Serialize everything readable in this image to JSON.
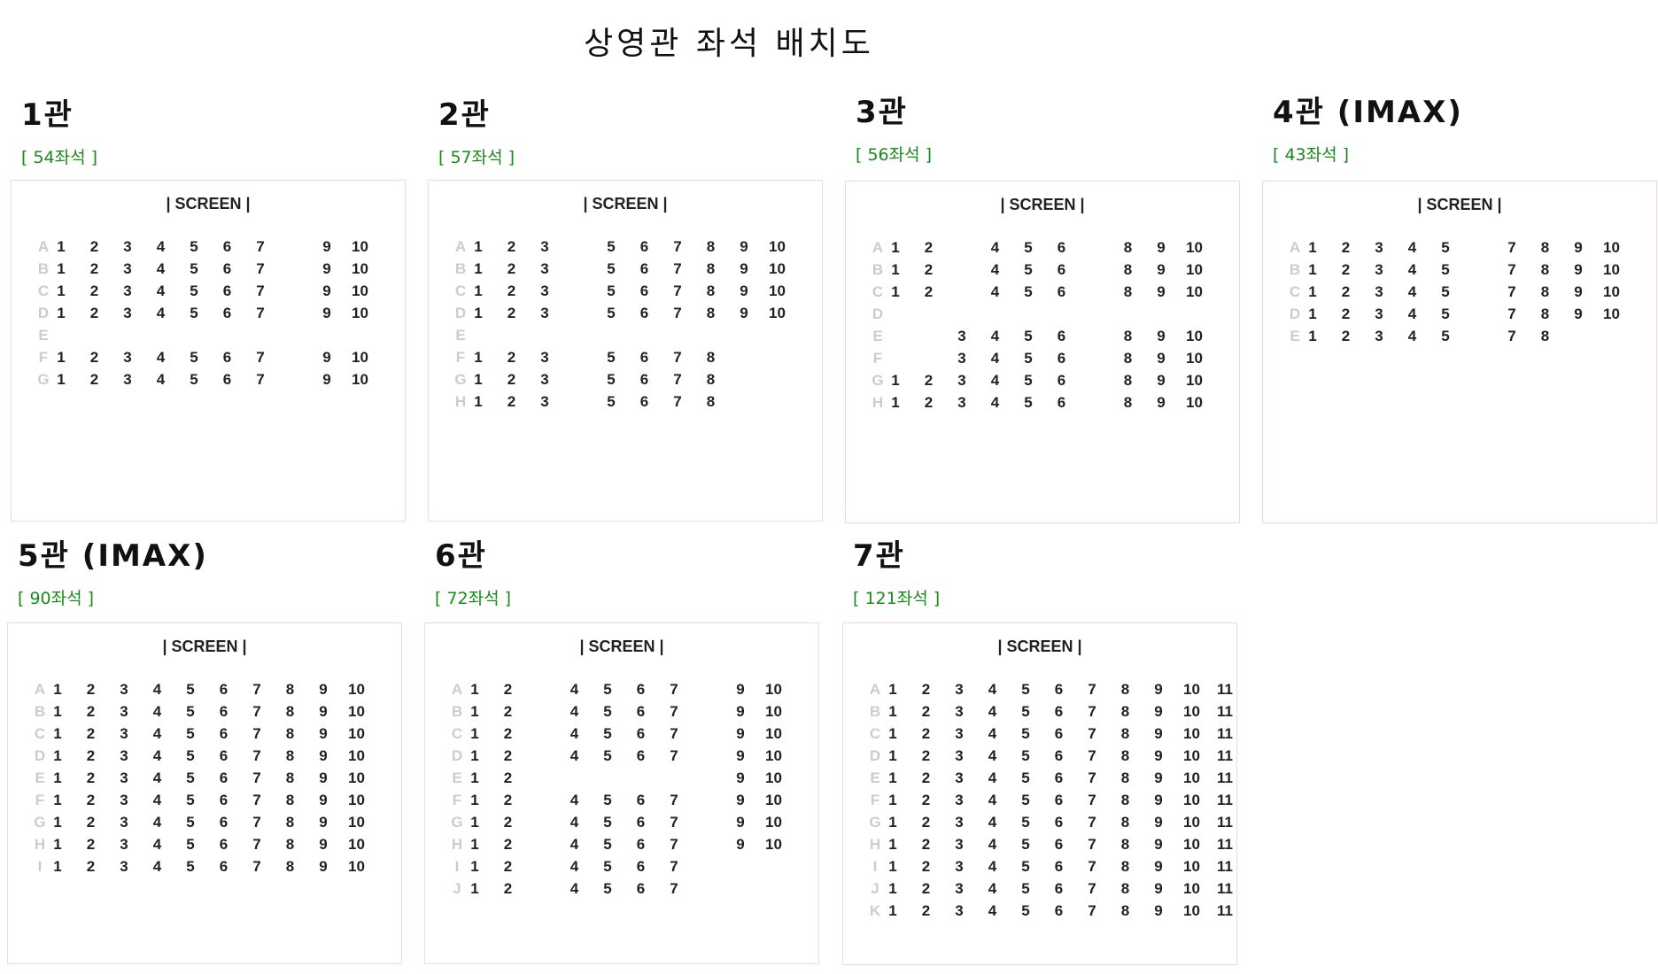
{
  "page_title": "상영관 좌석 배치도",
  "screen_label": "| SCREEN |",
  "halls": [
    {
      "name": "1관",
      "count": "[ 54좌석 ]",
      "cols": 10,
      "rows": [
        {
          "label": "A",
          "seats": [
            "1",
            "2",
            "3",
            "4",
            "5",
            "6",
            "7",
            null,
            "9",
            "10"
          ]
        },
        {
          "label": "B",
          "seats": [
            "1",
            "2",
            "3",
            "4",
            "5",
            "6",
            "7",
            null,
            "9",
            "10"
          ]
        },
        {
          "label": "C",
          "seats": [
            "1",
            "2",
            "3",
            "4",
            "5",
            "6",
            "7",
            null,
            "9",
            "10"
          ]
        },
        {
          "label": "D",
          "seats": [
            "1",
            "2",
            "3",
            "4",
            "5",
            "6",
            "7",
            null,
            "9",
            "10"
          ]
        },
        {
          "label": "E",
          "seats": [
            null,
            null,
            null,
            null,
            null,
            null,
            null,
            null,
            null,
            null
          ]
        },
        {
          "label": "F",
          "seats": [
            "1",
            "2",
            "3",
            "4",
            "5",
            "6",
            "7",
            null,
            "9",
            "10"
          ]
        },
        {
          "label": "G",
          "seats": [
            "1",
            "2",
            "3",
            "4",
            "5",
            "6",
            "7",
            null,
            "9",
            "10"
          ]
        }
      ]
    },
    {
      "name": "2관",
      "count": "[ 57좌석 ]",
      "cols": 10,
      "rows": [
        {
          "label": "A",
          "seats": [
            "1",
            "2",
            "3",
            null,
            "5",
            "6",
            "7",
            "8",
            "9",
            "10"
          ]
        },
        {
          "label": "B",
          "seats": [
            "1",
            "2",
            "3",
            null,
            "5",
            "6",
            "7",
            "8",
            "9",
            "10"
          ]
        },
        {
          "label": "C",
          "seats": [
            "1",
            "2",
            "3",
            null,
            "5",
            "6",
            "7",
            "8",
            "9",
            "10"
          ]
        },
        {
          "label": "D",
          "seats": [
            "1",
            "2",
            "3",
            null,
            "5",
            "6",
            "7",
            "8",
            "9",
            "10"
          ]
        },
        {
          "label": "E",
          "seats": [
            null,
            null,
            null,
            null,
            null,
            null,
            null,
            null,
            null,
            null
          ]
        },
        {
          "label": "F",
          "seats": [
            "1",
            "2",
            "3",
            null,
            "5",
            "6",
            "7",
            "8",
            null,
            null
          ]
        },
        {
          "label": "G",
          "seats": [
            "1",
            "2",
            "3",
            null,
            "5",
            "6",
            "7",
            "8",
            null,
            null
          ]
        },
        {
          "label": "H",
          "seats": [
            "1",
            "2",
            "3",
            null,
            "5",
            "6",
            "7",
            "8",
            null,
            null
          ]
        }
      ]
    },
    {
      "name": "3관",
      "count": "[ 56좌석 ]",
      "cols": 10,
      "rows": [
        {
          "label": "A",
          "seats": [
            "1",
            "2",
            null,
            "4",
            "5",
            "6",
            null,
            "8",
            "9",
            "10"
          ]
        },
        {
          "label": "B",
          "seats": [
            "1",
            "2",
            null,
            "4",
            "5",
            "6",
            null,
            "8",
            "9",
            "10"
          ]
        },
        {
          "label": "C",
          "seats": [
            "1",
            "2",
            null,
            "4",
            "5",
            "6",
            null,
            "8",
            "9",
            "10"
          ]
        },
        {
          "label": "D",
          "seats": [
            null,
            null,
            null,
            null,
            null,
            null,
            null,
            null,
            null,
            null
          ]
        },
        {
          "label": "E",
          "seats": [
            null,
            null,
            "3",
            "4",
            "5",
            "6",
            null,
            "8",
            "9",
            "10"
          ]
        },
        {
          "label": "F",
          "seats": [
            null,
            null,
            "3",
            "4",
            "5",
            "6",
            null,
            "8",
            "9",
            "10"
          ]
        },
        {
          "label": "G",
          "seats": [
            "1",
            "2",
            "3",
            "4",
            "5",
            "6",
            null,
            "8",
            "9",
            "10"
          ]
        },
        {
          "label": "H",
          "seats": [
            "1",
            "2",
            "3",
            "4",
            "5",
            "6",
            null,
            "8",
            "9",
            "10"
          ]
        }
      ]
    },
    {
      "name": "4관 (IMAX)",
      "count": "[ 43좌석 ]",
      "cols": 10,
      "rows": [
        {
          "label": "A",
          "seats": [
            "1",
            "2",
            "3",
            "4",
            "5",
            null,
            "7",
            "8",
            "9",
            "10"
          ]
        },
        {
          "label": "B",
          "seats": [
            "1",
            "2",
            "3",
            "4",
            "5",
            null,
            "7",
            "8",
            "9",
            "10"
          ]
        },
        {
          "label": "C",
          "seats": [
            "1",
            "2",
            "3",
            "4",
            "5",
            null,
            "7",
            "8",
            "9",
            "10"
          ]
        },
        {
          "label": "D",
          "seats": [
            "1",
            "2",
            "3",
            "4",
            "5",
            null,
            "7",
            "8",
            "9",
            "10"
          ]
        },
        {
          "label": "E",
          "seats": [
            "1",
            "2",
            "3",
            "4",
            "5",
            null,
            "7",
            "8",
            null,
            null
          ]
        }
      ]
    },
    {
      "name": "5관 (IMAX)",
      "count": "[ 90좌석 ]",
      "cols": 10,
      "rows": [
        {
          "label": "A",
          "seats": [
            "1",
            "2",
            "3",
            "4",
            "5",
            "6",
            "7",
            "8",
            "9",
            "10"
          ]
        },
        {
          "label": "B",
          "seats": [
            "1",
            "2",
            "3",
            "4",
            "5",
            "6",
            "7",
            "8",
            "9",
            "10"
          ]
        },
        {
          "label": "C",
          "seats": [
            "1",
            "2",
            "3",
            "4",
            "5",
            "6",
            "7",
            "8",
            "9",
            "10"
          ]
        },
        {
          "label": "D",
          "seats": [
            "1",
            "2",
            "3",
            "4",
            "5",
            "6",
            "7",
            "8",
            "9",
            "10"
          ]
        },
        {
          "label": "E",
          "seats": [
            "1",
            "2",
            "3",
            "4",
            "5",
            "6",
            "7",
            "8",
            "9",
            "10"
          ]
        },
        {
          "label": "F",
          "seats": [
            "1",
            "2",
            "3",
            "4",
            "5",
            "6",
            "7",
            "8",
            "9",
            "10"
          ]
        },
        {
          "label": "G",
          "seats": [
            "1",
            "2",
            "3",
            "4",
            "5",
            "6",
            "7",
            "8",
            "9",
            "10"
          ]
        },
        {
          "label": "H",
          "seats": [
            "1",
            "2",
            "3",
            "4",
            "5",
            "6",
            "7",
            "8",
            "9",
            "10"
          ]
        },
        {
          "label": "I",
          "seats": [
            "1",
            "2",
            "3",
            "4",
            "5",
            "6",
            "7",
            "8",
            "9",
            "10"
          ]
        }
      ]
    },
    {
      "name": "6관",
      "count": "[ 72좌석 ]",
      "cols": 10,
      "rows": [
        {
          "label": "A",
          "seats": [
            "1",
            "2",
            null,
            "4",
            "5",
            "6",
            "7",
            null,
            "9",
            "10"
          ]
        },
        {
          "label": "B",
          "seats": [
            "1",
            "2",
            null,
            "4",
            "5",
            "6",
            "7",
            null,
            "9",
            "10"
          ]
        },
        {
          "label": "C",
          "seats": [
            "1",
            "2",
            null,
            "4",
            "5",
            "6",
            "7",
            null,
            "9",
            "10"
          ]
        },
        {
          "label": "D",
          "seats": [
            "1",
            "2",
            null,
            "4",
            "5",
            "6",
            "7",
            null,
            "9",
            "10"
          ]
        },
        {
          "label": "E",
          "seats": [
            "1",
            "2",
            null,
            null,
            null,
            null,
            null,
            null,
            "9",
            "10"
          ]
        },
        {
          "label": "F",
          "seats": [
            "1",
            "2",
            null,
            "4",
            "5",
            "6",
            "7",
            null,
            "9",
            "10"
          ]
        },
        {
          "label": "G",
          "seats": [
            "1",
            "2",
            null,
            "4",
            "5",
            "6",
            "7",
            null,
            "9",
            "10"
          ]
        },
        {
          "label": "H",
          "seats": [
            "1",
            "2",
            null,
            "4",
            "5",
            "6",
            "7",
            null,
            "9",
            "10"
          ]
        },
        {
          "label": "I",
          "seats": [
            "1",
            "2",
            null,
            "4",
            "5",
            "6",
            "7",
            null,
            null,
            null
          ]
        },
        {
          "label": "J",
          "seats": [
            "1",
            "2",
            null,
            "4",
            "5",
            "6",
            "7",
            null,
            null,
            null
          ]
        }
      ]
    },
    {
      "name": "7관",
      "count": "[ 121좌석 ]",
      "cols": 11,
      "rows": [
        {
          "label": "A",
          "seats": [
            "1",
            "2",
            "3",
            "4",
            "5",
            "6",
            "7",
            "8",
            "9",
            "10",
            "11"
          ]
        },
        {
          "label": "B",
          "seats": [
            "1",
            "2",
            "3",
            "4",
            "5",
            "6",
            "7",
            "8",
            "9",
            "10",
            "11"
          ]
        },
        {
          "label": "C",
          "seats": [
            "1",
            "2",
            "3",
            "4",
            "5",
            "6",
            "7",
            "8",
            "9",
            "10",
            "11"
          ]
        },
        {
          "label": "D",
          "seats": [
            "1",
            "2",
            "3",
            "4",
            "5",
            "6",
            "7",
            "8",
            "9",
            "10",
            "11"
          ]
        },
        {
          "label": "E",
          "seats": [
            "1",
            "2",
            "3",
            "4",
            "5",
            "6",
            "7",
            "8",
            "9",
            "10",
            "11"
          ]
        },
        {
          "label": "F",
          "seats": [
            "1",
            "2",
            "3",
            "4",
            "5",
            "6",
            "7",
            "8",
            "9",
            "10",
            "11"
          ]
        },
        {
          "label": "G",
          "seats": [
            "1",
            "2",
            "3",
            "4",
            "5",
            "6",
            "7",
            "8",
            "9",
            "10",
            "11"
          ]
        },
        {
          "label": "H",
          "seats": [
            "1",
            "2",
            "3",
            "4",
            "5",
            "6",
            "7",
            "8",
            "9",
            "10",
            "11"
          ]
        },
        {
          "label": "I",
          "seats": [
            "1",
            "2",
            "3",
            "4",
            "5",
            "6",
            "7",
            "8",
            "9",
            "10",
            "11"
          ]
        },
        {
          "label": "J",
          "seats": [
            "1",
            "2",
            "3",
            "4",
            "5",
            "6",
            "7",
            "8",
            "9",
            "10",
            "11"
          ]
        },
        {
          "label": "K",
          "seats": [
            "1",
            "2",
            "3",
            "4",
            "5",
            "6",
            "7",
            "8",
            "9",
            "10",
            "11"
          ]
        }
      ]
    }
  ]
}
